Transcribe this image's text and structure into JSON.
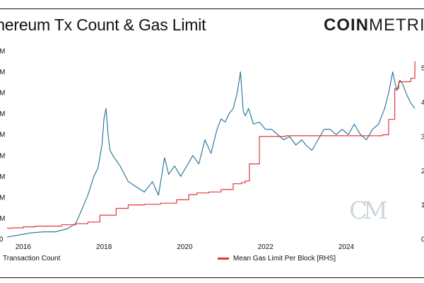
{
  "header": {
    "title": "thereum Tx Count & Gas Limit",
    "brand_bold": "COIN",
    "brand_light": "METRIC"
  },
  "watermark": "CM",
  "chart_data": {
    "type": "line",
    "title": "thereum Tx Count & Gas Limit",
    "xlabel": "",
    "ylabel": "",
    "x_tick_labels": [
      "2016",
      "2018",
      "2020",
      "2022",
      "2024"
    ],
    "left_tick_labels": [
      "0",
      "M",
      "M",
      "M",
      "M",
      "M",
      "M",
      "M",
      "M",
      "M"
    ],
    "right_tick_labels": [
      "0",
      "1",
      "2",
      "3",
      "4",
      "5"
    ],
    "xlim": [
      2015.6,
      2025.75
    ],
    "ylim_left": [
      0,
      1.8
    ],
    "ylim_right": [
      0,
      5.5
    ],
    "series": [
      {
        "name": "Transaction Count",
        "axis": "left",
        "color": "#1f6f96",
        "x": [
          2015.6,
          2015.9,
          2016.2,
          2016.5,
          2016.8,
          2017.1,
          2017.3,
          2017.45,
          2017.6,
          2017.75,
          2017.85,
          2017.95,
          2018.0,
          2018.05,
          2018.1,
          2018.15,
          2018.25,
          2018.4,
          2018.6,
          2018.8,
          2019.0,
          2019.2,
          2019.35,
          2019.5,
          2019.6,
          2019.75,
          2019.9,
          2020.05,
          2020.2,
          2020.35,
          2020.5,
          2020.65,
          2020.8,
          2020.9,
          2021.0,
          2021.1,
          2021.2,
          2021.3,
          2021.38,
          2021.45,
          2021.5,
          2021.58,
          2021.7,
          2021.85,
          2022.0,
          2022.15,
          2022.3,
          2022.45,
          2022.6,
          2022.75,
          2022.9,
          2023.0,
          2023.15,
          2023.3,
          2023.45,
          2023.6,
          2023.75,
          2023.9,
          2024.05,
          2024.2,
          2024.35,
          2024.5,
          2024.65,
          2024.8,
          2024.95,
          2025.05,
          2025.15,
          2025.25,
          2025.33,
          2025.4,
          2025.5,
          2025.6,
          2025.7
        ],
        "values": [
          0.02,
          0.04,
          0.06,
          0.07,
          0.07,
          0.1,
          0.15,
          0.28,
          0.42,
          0.6,
          0.68,
          0.9,
          1.15,
          1.25,
          1.0,
          0.85,
          0.78,
          0.7,
          0.55,
          0.5,
          0.45,
          0.55,
          0.42,
          0.78,
          0.62,
          0.7,
          0.6,
          0.7,
          0.8,
          0.72,
          0.95,
          0.82,
          1.05,
          1.15,
          1.12,
          1.2,
          1.25,
          1.4,
          1.6,
          1.22,
          1.18,
          1.25,
          1.1,
          1.12,
          1.05,
          1.05,
          1.0,
          0.95,
          0.98,
          0.9,
          0.95,
          0.9,
          0.85,
          0.95,
          1.05,
          1.05,
          1.0,
          1.05,
          1.0,
          1.1,
          1.0,
          0.95,
          1.05,
          1.1,
          1.25,
          1.4,
          1.6,
          1.42,
          1.52,
          1.48,
          1.38,
          1.3,
          1.25
        ]
      },
      {
        "name": "Mean Gas Limit Per Block [RHS]",
        "axis": "right",
        "color": "#e0373f",
        "x": [
          2015.6,
          2015.75,
          2016.0,
          2016.3,
          2016.8,
          2016.95,
          2017.3,
          2017.6,
          2017.9,
          2018.3,
          2018.6,
          2019.0,
          2019.4,
          2019.8,
          2020.1,
          2020.3,
          2020.6,
          2020.9,
          2021.2,
          2021.4,
          2021.5,
          2021.6,
          2021.85,
          2022.0,
          2022.5,
          2023.0,
          2023.5,
          2024.0,
          2024.5,
          2024.9,
          2025.05,
          2025.2,
          2025.3,
          2025.45,
          2025.6,
          2025.7
        ],
        "values": [
          0.32,
          0.33,
          0.36,
          0.38,
          0.38,
          0.42,
          0.45,
          0.5,
          0.7,
          0.9,
          1.0,
          1.02,
          1.05,
          1.15,
          1.3,
          1.35,
          1.38,
          1.45,
          1.62,
          1.65,
          1.7,
          2.2,
          3.0,
          3.0,
          3.02,
          3.02,
          3.02,
          3.02,
          3.02,
          3.05,
          3.5,
          4.4,
          4.6,
          4.6,
          4.7,
          5.2
        ]
      }
    ],
    "legend": {
      "position": "bottom",
      "left_label": "Transaction Count",
      "right_label": "Mean Gas Limit Per Block [RHS]"
    }
  }
}
